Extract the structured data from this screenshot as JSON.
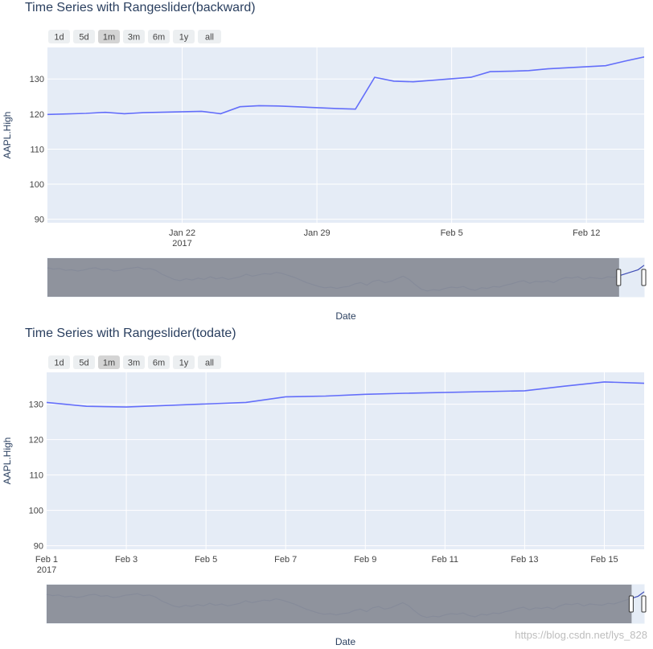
{
  "watermark": "https://blog.csdn.net/lys_828",
  "colors": {
    "plot_bg": "#e5ecf6",
    "grid": "#ffffff",
    "line": "#636efa",
    "slider_mask": "#8a8e98",
    "slider_line": "#3f4db5",
    "button_bg": "#eceff1",
    "button_active": "#d4d4d4"
  },
  "chart_data": [
    {
      "type": "line",
      "title": "Time Series with Rangeslider(backward)",
      "xlabel": "Date",
      "ylabel": "AAPL.High",
      "ylim": [
        89,
        139
      ],
      "xrange": [
        "2017-01-15",
        "2017-02-15"
      ],
      "yticks": [
        90,
        100,
        110,
        120,
        130
      ],
      "xticks": [
        {
          "date": "2017-01-22",
          "label": "Jan 22",
          "sublabel": "2017"
        },
        {
          "date": "2017-01-29",
          "label": "Jan 29",
          "sublabel": ""
        },
        {
          "date": "2017-02-05",
          "label": "Feb 5",
          "sublabel": ""
        },
        {
          "date": "2017-02-12",
          "label": "Feb 12",
          "sublabel": ""
        }
      ],
      "buttons": [
        {
          "label": "1d",
          "active": false
        },
        {
          "label": "5d",
          "active": false
        },
        {
          "label": "1m",
          "active": true
        },
        {
          "label": "3m",
          "active": false
        },
        {
          "label": "6m",
          "active": false
        },
        {
          "label": "1y",
          "active": false
        },
        {
          "label": "all",
          "active": false
        }
      ],
      "series": [
        {
          "name": "AAPL.High",
          "x": [
            "2017-01-13",
            "2017-01-17",
            "2017-01-18",
            "2017-01-19",
            "2017-01-20",
            "2017-01-23",
            "2017-01-24",
            "2017-01-25",
            "2017-01-26",
            "2017-01-27",
            "2017-01-30",
            "2017-01-31",
            "2017-02-01",
            "2017-02-02",
            "2017-02-03",
            "2017-02-06",
            "2017-02-07",
            "2017-02-08",
            "2017-02-09",
            "2017-02-10",
            "2017-02-13",
            "2017-02-14",
            "2017-02-15",
            "2017-02-16"
          ],
          "y": [
            119.6,
            120.2,
            120.5,
            120.1,
            120.4,
            120.8,
            120.1,
            122.1,
            122.4,
            122.3,
            121.6,
            121.4,
            130.5,
            129.4,
            129.2,
            130.5,
            132.1,
            132.2,
            132.4,
            132.9,
            133.8,
            135.1,
            136.3,
            135.9
          ]
        }
      ],
      "rangeslider": {
        "window_start_fraction": 0.958,
        "window_end_fraction": 1.0,
        "overview_y": [
          0.8,
          0.76,
          0.78,
          0.72,
          0.74,
          0.7,
          0.73,
          0.78,
          0.8,
          0.74,
          0.76,
          0.7,
          0.72,
          0.77,
          0.79,
          0.82,
          0.76,
          0.78,
          0.72,
          0.6,
          0.52,
          0.44,
          0.4,
          0.46,
          0.42,
          0.48,
          0.44,
          0.52,
          0.46,
          0.5,
          0.44,
          0.48,
          0.52,
          0.6,
          0.54,
          0.58,
          0.62,
          0.6,
          0.66,
          0.62,
          0.56,
          0.5,
          0.42,
          0.34,
          0.28,
          0.22,
          0.18,
          0.2,
          0.16,
          0.2,
          0.22,
          0.3,
          0.34,
          0.26,
          0.38,
          0.42,
          0.34,
          0.38,
          0.46,
          0.54,
          0.44,
          0.28,
          0.14,
          0.08,
          0.12,
          0.1,
          0.16,
          0.2,
          0.18,
          0.22,
          0.14,
          0.1,
          0.18,
          0.16,
          0.22,
          0.2,
          0.26,
          0.3,
          0.36,
          0.4,
          0.32,
          0.38,
          0.36,
          0.4,
          0.34,
          0.44,
          0.5,
          0.48,
          0.52,
          0.44,
          0.5,
          0.48,
          0.46,
          0.52,
          0.5,
          0.56,
          0.62,
          0.68,
          0.74,
          0.88
        ]
      }
    },
    {
      "type": "line",
      "title": "Time Series with Rangeslider(todate)",
      "xlabel": "Date",
      "ylabel": "AAPL.High",
      "ylim": [
        89,
        139
      ],
      "xrange": [
        "2017-02-01",
        "2017-02-16"
      ],
      "yticks": [
        90,
        100,
        110,
        120,
        130
      ],
      "xticks": [
        {
          "date": "2017-02-01",
          "label": "Feb 1",
          "sublabel": "2017"
        },
        {
          "date": "2017-02-03",
          "label": "Feb 3",
          "sublabel": ""
        },
        {
          "date": "2017-02-05",
          "label": "Feb 5",
          "sublabel": ""
        },
        {
          "date": "2017-02-07",
          "label": "Feb 7",
          "sublabel": ""
        },
        {
          "date": "2017-02-09",
          "label": "Feb 9",
          "sublabel": ""
        },
        {
          "date": "2017-02-11",
          "label": "Feb 11",
          "sublabel": ""
        },
        {
          "date": "2017-02-13",
          "label": "Feb 13",
          "sublabel": ""
        },
        {
          "date": "2017-02-15",
          "label": "Feb 15",
          "sublabel": ""
        }
      ],
      "buttons": [
        {
          "label": "1d",
          "active": false
        },
        {
          "label": "5d",
          "active": false
        },
        {
          "label": "1m",
          "active": true
        },
        {
          "label": "3m",
          "active": false
        },
        {
          "label": "6m",
          "active": false
        },
        {
          "label": "1y",
          "active": false
        },
        {
          "label": "all",
          "active": false
        }
      ],
      "series": [
        {
          "name": "AAPL.High",
          "x": [
            "2017-02-01",
            "2017-02-02",
            "2017-02-03",
            "2017-02-06",
            "2017-02-07",
            "2017-02-08",
            "2017-02-09",
            "2017-02-10",
            "2017-02-13",
            "2017-02-14",
            "2017-02-15",
            "2017-02-16"
          ],
          "y": [
            130.5,
            129.4,
            129.2,
            130.5,
            132.1,
            132.3,
            132.8,
            133.1,
            133.8,
            135.1,
            136.3,
            135.9
          ]
        }
      ],
      "rangeslider": {
        "window_start_fraction": 0.979,
        "window_end_fraction": 1.0,
        "overview_y": [
          0.8,
          0.76,
          0.78,
          0.72,
          0.74,
          0.7,
          0.73,
          0.78,
          0.8,
          0.74,
          0.76,
          0.7,
          0.72,
          0.77,
          0.79,
          0.82,
          0.76,
          0.78,
          0.72,
          0.6,
          0.52,
          0.44,
          0.4,
          0.46,
          0.42,
          0.48,
          0.44,
          0.52,
          0.46,
          0.5,
          0.44,
          0.48,
          0.52,
          0.6,
          0.54,
          0.58,
          0.62,
          0.6,
          0.66,
          0.62,
          0.56,
          0.5,
          0.42,
          0.34,
          0.28,
          0.22,
          0.18,
          0.2,
          0.16,
          0.2,
          0.22,
          0.3,
          0.34,
          0.26,
          0.38,
          0.42,
          0.34,
          0.38,
          0.46,
          0.54,
          0.44,
          0.28,
          0.14,
          0.08,
          0.12,
          0.1,
          0.16,
          0.2,
          0.18,
          0.22,
          0.14,
          0.1,
          0.18,
          0.16,
          0.22,
          0.2,
          0.26,
          0.3,
          0.36,
          0.4,
          0.32,
          0.38,
          0.36,
          0.4,
          0.34,
          0.44,
          0.5,
          0.48,
          0.52,
          0.44,
          0.5,
          0.48,
          0.46,
          0.52,
          0.5,
          0.56,
          0.62,
          0.68,
          0.74,
          0.88
        ]
      }
    }
  ]
}
